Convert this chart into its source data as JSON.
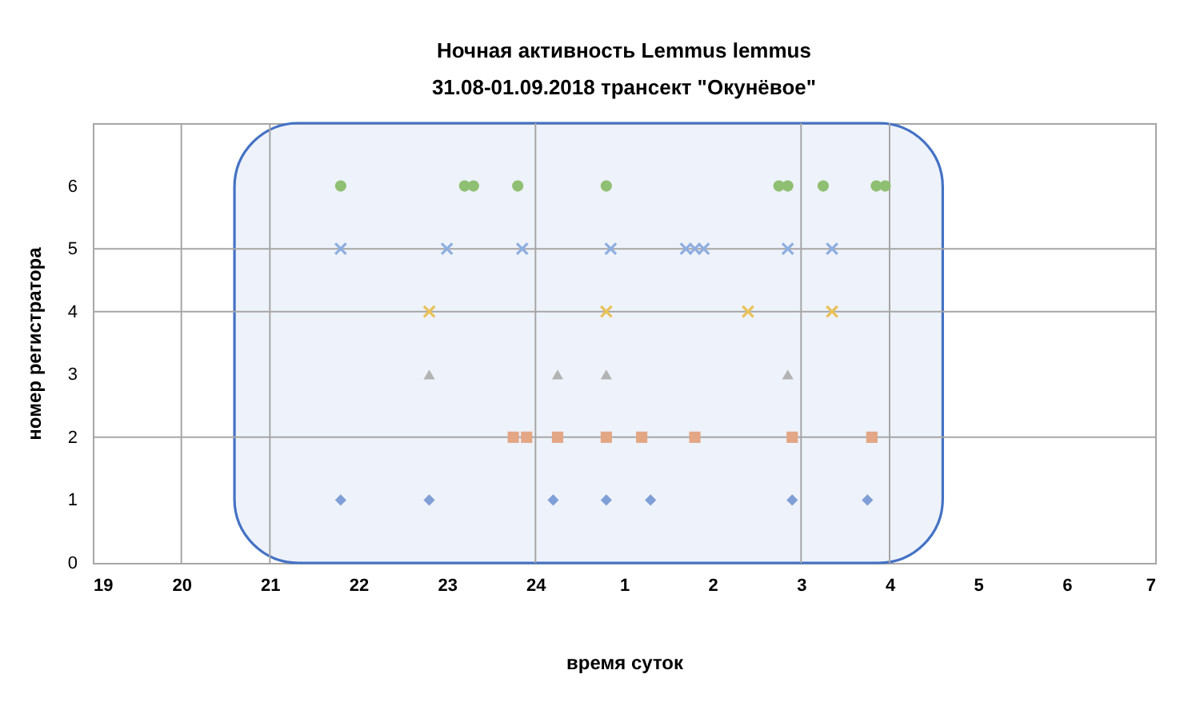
{
  "chart_data": {
    "type": "scatter",
    "title": "Ночная активность Lemmus lemmus",
    "subtitle": "31.08-01.09.2018 трансект \"Окунёвое\"",
    "xlabel": "время суток",
    "ylabel": "номер регистратора",
    "xlim": [
      "2018-08-31T19:00",
      "2018-09-01T07:00"
    ],
    "xticks": [
      {
        "value": "2018-08-31T19:00",
        "label": "19"
      },
      {
        "value": "2018-08-31T20:00",
        "label": "20"
      },
      {
        "value": "2018-08-31T21:00",
        "label": "21"
      },
      {
        "value": "2018-08-31T22:00",
        "label": "22"
      },
      {
        "value": "2018-08-31T23:00",
        "label": "23"
      },
      {
        "value": "2018-09-01T00:00",
        "label": "24"
      },
      {
        "value": "2018-09-01T01:00",
        "label": "1"
      },
      {
        "value": "2018-09-01T02:00",
        "label": "2"
      },
      {
        "value": "2018-09-01T03:00",
        "label": "3"
      },
      {
        "value": "2018-09-01T04:00",
        "label": "4"
      },
      {
        "value": "2018-09-01T05:00",
        "label": "5"
      },
      {
        "value": "2018-09-01T06:00",
        "label": "6"
      },
      {
        "value": "2018-09-01T07:00",
        "label": "7"
      }
    ],
    "ylim": [
      0,
      7
    ],
    "yticks": [
      0,
      1,
      2,
      3,
      4,
      5,
      6
    ],
    "bands": [
      {
        "axis": "x",
        "from": "2018-08-31T20:36",
        "to": "2018-09-01T04:36",
        "color": "#4472c4"
      }
    ],
    "ref_lines": [
      {
        "axis": "x",
        "value": "2018-08-31T20:00",
        "color": "#a6a6a6"
      },
      {
        "axis": "x",
        "value": "2018-08-31T21:00",
        "color": "#a6a6a6"
      },
      {
        "axis": "x",
        "value": "2018-09-01T00:00",
        "color": "#a6a6a6"
      },
      {
        "axis": "x",
        "value": "2018-09-01T03:00",
        "color": "#a6a6a6"
      },
      {
        "axis": "x",
        "value": "2018-09-01T04:00",
        "color": "#a6a6a6"
      },
      {
        "axis": "y",
        "value": 2,
        "color": "#a6a6a6"
      },
      {
        "axis": "y",
        "value": 4,
        "color": "#a6a6a6"
      },
      {
        "axis": "y",
        "value": 5,
        "color": "#a6a6a6"
      }
    ],
    "series": [
      {
        "color": "#8fbf72",
        "marker": "circle",
        "x": [
          "2018-08-31T21:48",
          "2018-08-31T23:12",
          "2018-08-31T23:18",
          "2018-08-31T23:48",
          "2018-09-01T00:48",
          "2018-09-01T02:45",
          "2018-09-01T02:51",
          "2018-09-01T03:15",
          "2018-09-01T03:51",
          "2018-09-01T03:57"
        ],
        "values": [
          6,
          6,
          6,
          6,
          6,
          6,
          6,
          6,
          6,
          6
        ]
      },
      {
        "color": "#8eaee0",
        "marker": "cross",
        "x": [
          "2018-08-31T21:48",
          "2018-08-31T23:00",
          "2018-08-31T23:51",
          "2018-09-01T00:51",
          "2018-09-01T01:42",
          "2018-09-01T01:48",
          "2018-09-01T01:54",
          "2018-09-01T02:51",
          "2018-09-01T03:21"
        ],
        "values": [
          5,
          5,
          5,
          5,
          5,
          5,
          5,
          5,
          5
        ]
      },
      {
        "color": "#e9c25a",
        "marker": "cross",
        "x": [
          "2018-08-31T22:48",
          "2018-09-01T00:48",
          "2018-09-01T02:24",
          "2018-09-01T03:21"
        ],
        "values": [
          4,
          4,
          4,
          4
        ]
      },
      {
        "color": "#b3b3b3",
        "marker": "triangle",
        "x": [
          "2018-08-31T22:48",
          "2018-09-01T00:15",
          "2018-09-01T00:48",
          "2018-09-01T02:51"
        ],
        "values": [
          3,
          3,
          3,
          3
        ]
      },
      {
        "color": "#e3a785",
        "marker": "square",
        "x": [
          "2018-08-31T23:45",
          "2018-08-31T23:54",
          "2018-09-01T00:15",
          "2018-09-01T00:48",
          "2018-09-01T01:12",
          "2018-09-01T01:48",
          "2018-09-01T02:54",
          "2018-09-01T03:48"
        ],
        "values": [
          2,
          2,
          2,
          2,
          2,
          2,
          2,
          2
        ]
      },
      {
        "color": "#7f9fd6",
        "marker": "diamond",
        "x": [
          "2018-08-31T21:48",
          "2018-08-31T22:48",
          "2018-09-01T00:12",
          "2018-09-01T00:48",
          "2018-09-01T01:18",
          "2018-09-01T02:54",
          "2018-09-01T03:45"
        ],
        "values": [
          1,
          1,
          1,
          1,
          1,
          1,
          1
        ]
      }
    ]
  }
}
